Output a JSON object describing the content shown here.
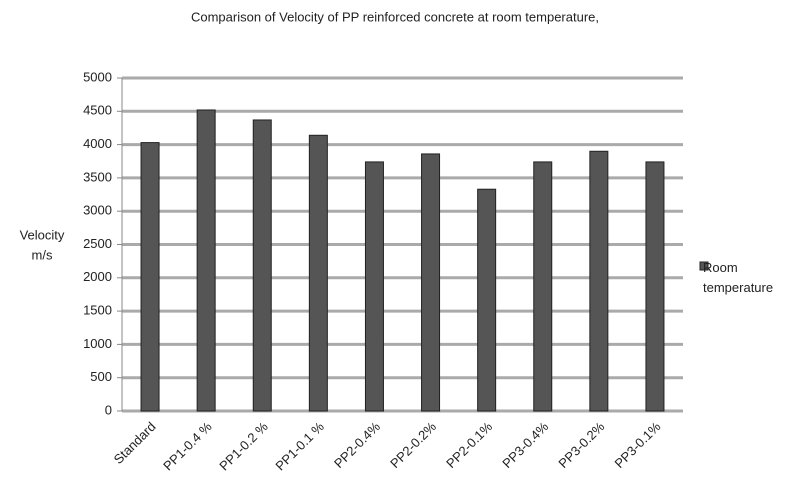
{
  "chart_data": {
    "type": "bar",
    "title": "Comparison of  Velocity of PP reinforced concrete at room temperature,",
    "y_label": [
      "Velocity",
      "m/s"
    ],
    "categories": [
      "Standard",
      "PP1-0.4 %",
      "PP1-0.2 %",
      "PP1-0.1 %",
      "PP2-0.4%",
      "PP2-0.2%",
      "PP2-0.1%",
      "PP3-0.4%",
      "PP3-0.2%",
      "PP3-0.1%"
    ],
    "series": [
      {
        "name": "Room temperature",
        "color": "#555555",
        "values": [
          4030,
          4520,
          4370,
          4140,
          3740,
          3860,
          3330,
          3740,
          3900,
          3740
        ]
      }
    ],
    "ylim": [
      0,
      5000
    ],
    "yticks": [
      0,
      500,
      1000,
      1500,
      2000,
      2500,
      3000,
      3500,
      4000,
      4500,
      5000
    ],
    "grid": true,
    "legend": "right"
  }
}
